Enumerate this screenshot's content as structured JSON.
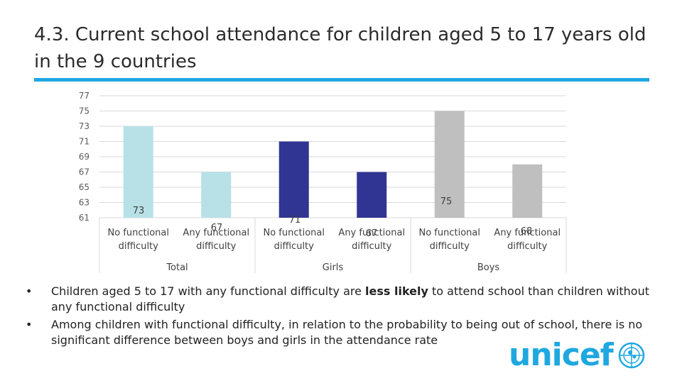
{
  "slide": {
    "title_line1": "4.3. Current school attendance for children aged 5 to 17 years old",
    "title_line2": "in the 9 countries",
    "accent_color": "#1fa8e0",
    "bullets": [
      {
        "pre": "Children aged 5 to 17 with any functional difficulty are ",
        "bold": "less likely",
        "post": " to attend school than children without any functional difficulty"
      },
      {
        "pre": "Among children with functional difficulty, in relation to the probability to being out of school, there is no significant difference between boys and girls in the attendance rate",
        "bold": "",
        "post": ""
      }
    ],
    "bullet_glyph": "•",
    "logo_text": "unicef",
    "logo_icon": "unicef-emblem-icon"
  },
  "chart_data": {
    "type": "bar",
    "ylim": [
      61,
      77
    ],
    "yticks": [
      "77",
      "75",
      "73",
      "71",
      "69",
      "67",
      "65",
      "63",
      "61"
    ],
    "grid": true,
    "legend": "none",
    "groups": [
      "Total",
      "Girls",
      "Boys"
    ],
    "categories": [
      {
        "group": "Total",
        "label_line1": "No functional",
        "label_line2": "difficulty"
      },
      {
        "group": "Total",
        "label_line1": "Any functional",
        "label_line2": "difficulty"
      },
      {
        "group": "Girls",
        "label_line1": "No functional",
        "label_line2": "difficulty"
      },
      {
        "group": "Girls",
        "label_line1": "Any functional",
        "label_line2": "difficulty"
      },
      {
        "group": "Boys",
        "label_line1": "No functional",
        "label_line2": "difficulty"
      },
      {
        "group": "Boys",
        "label_line1": "Any functional",
        "label_line2": "difficulty"
      }
    ],
    "values": [
      73,
      67,
      71,
      67,
      75,
      68
    ],
    "data_labels": [
      "73",
      "67",
      "71",
      "67",
      "75",
      "68"
    ],
    "colors": [
      "#b7e1e6",
      "#b7e1e6",
      "#303593",
      "#303593",
      "#bfbfbf",
      "#bfbfbf"
    ]
  }
}
